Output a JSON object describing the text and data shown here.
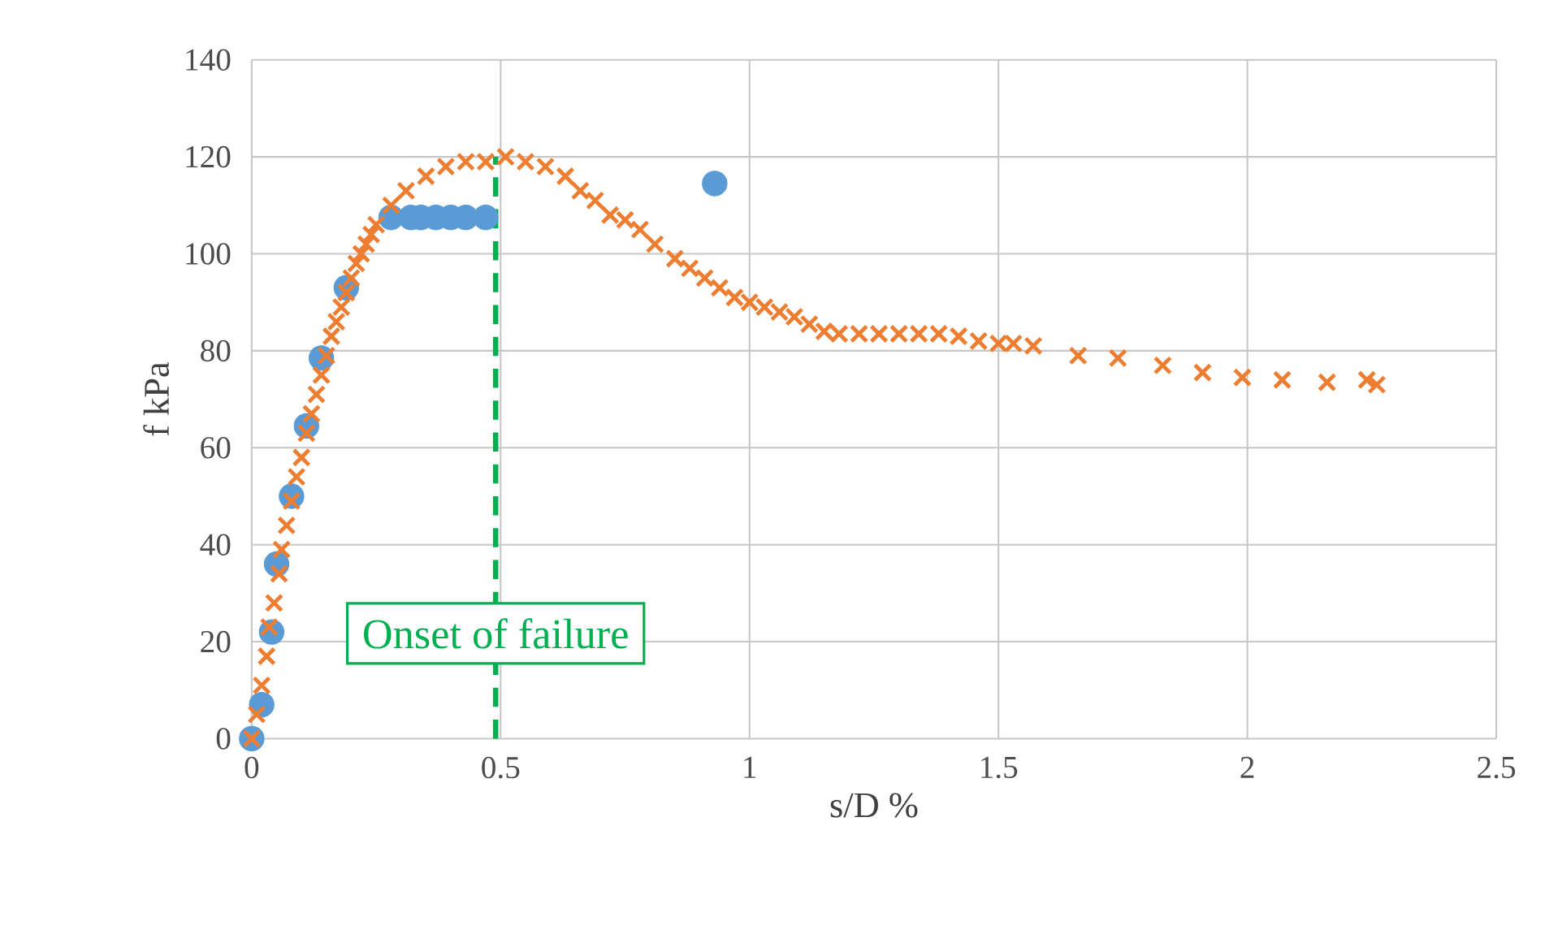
{
  "chart_data": {
    "type": "scatter",
    "xlabel": "s/D %",
    "ylabel": "f kPa",
    "xlim": [
      0,
      2.5
    ],
    "ylim": [
      0,
      140
    ],
    "xticks": [
      0,
      0.5,
      1,
      1.5,
      2,
      2.5
    ],
    "yticks": [
      0,
      20,
      40,
      60,
      80,
      100,
      120,
      140
    ],
    "grid": true,
    "series": [
      {
        "color": "#5b9bd5",
        "marker": "circle",
        "x": [
          0,
          0.02,
          0.04,
          0.05,
          0.08,
          0.11,
          0.14,
          0.19,
          0.28,
          0.32,
          0.34,
          0.37,
          0.4,
          0.43,
          0.47,
          0.93
        ],
        "values": [
          0,
          7,
          22,
          36,
          50,
          64.5,
          78.5,
          93,
          107.5,
          107.5,
          107.5,
          107.5,
          107.5,
          107.5,
          107.5,
          114.5
        ]
      },
      {
        "color": "#ed7d31",
        "marker": "cross",
        "x": [
          0,
          0.01,
          0.02,
          0.03,
          0.035,
          0.045,
          0.055,
          0.06,
          0.07,
          0.08,
          0.09,
          0.1,
          0.11,
          0.12,
          0.13,
          0.14,
          0.15,
          0.16,
          0.17,
          0.18,
          0.19,
          0.2,
          0.21,
          0.22,
          0.23,
          0.24,
          0.25,
          0.28,
          0.31,
          0.35,
          0.39,
          0.43,
          0.47,
          0.51,
          0.55,
          0.59,
          0.63,
          0.66,
          0.69,
          0.72,
          0.75,
          0.78,
          0.81,
          0.85,
          0.88,
          0.91,
          0.94,
          0.97,
          1.0,
          1.03,
          1.06,
          1.09,
          1.12,
          1.15,
          1.18,
          1.22,
          1.26,
          1.3,
          1.34,
          1.38,
          1.42,
          1.46,
          1.5,
          1.53,
          1.57,
          1.66,
          1.74,
          1.83,
          1.91,
          1.99,
          2.07,
          2.16,
          2.24,
          2.26
        ],
        "values": [
          0,
          5,
          11,
          17,
          23,
          28,
          34,
          39,
          44,
          49,
          54,
          58,
          63,
          67,
          71,
          75,
          79,
          83,
          86,
          89,
          92,
          95,
          98,
          100,
          102,
          104,
          106,
          110,
          113,
          116,
          118,
          119,
          119,
          120,
          119,
          118,
          116,
          113,
          111,
          108,
          107,
          105,
          102,
          99,
          97,
          95,
          93,
          91,
          90,
          89,
          88,
          87,
          85.5,
          84,
          83.5,
          83.5,
          83.5,
          83.5,
          83.5,
          83.5,
          83,
          82,
          81.5,
          81.5,
          81,
          79,
          78.5,
          77,
          75.5,
          74.5,
          74,
          73.5,
          74,
          73
        ]
      }
    ],
    "ref_lines": [
      {
        "axis": "x",
        "value": 0.49,
        "label": "Onset of failure",
        "color": "#00b050",
        "line_style": "dashed"
      }
    ]
  }
}
